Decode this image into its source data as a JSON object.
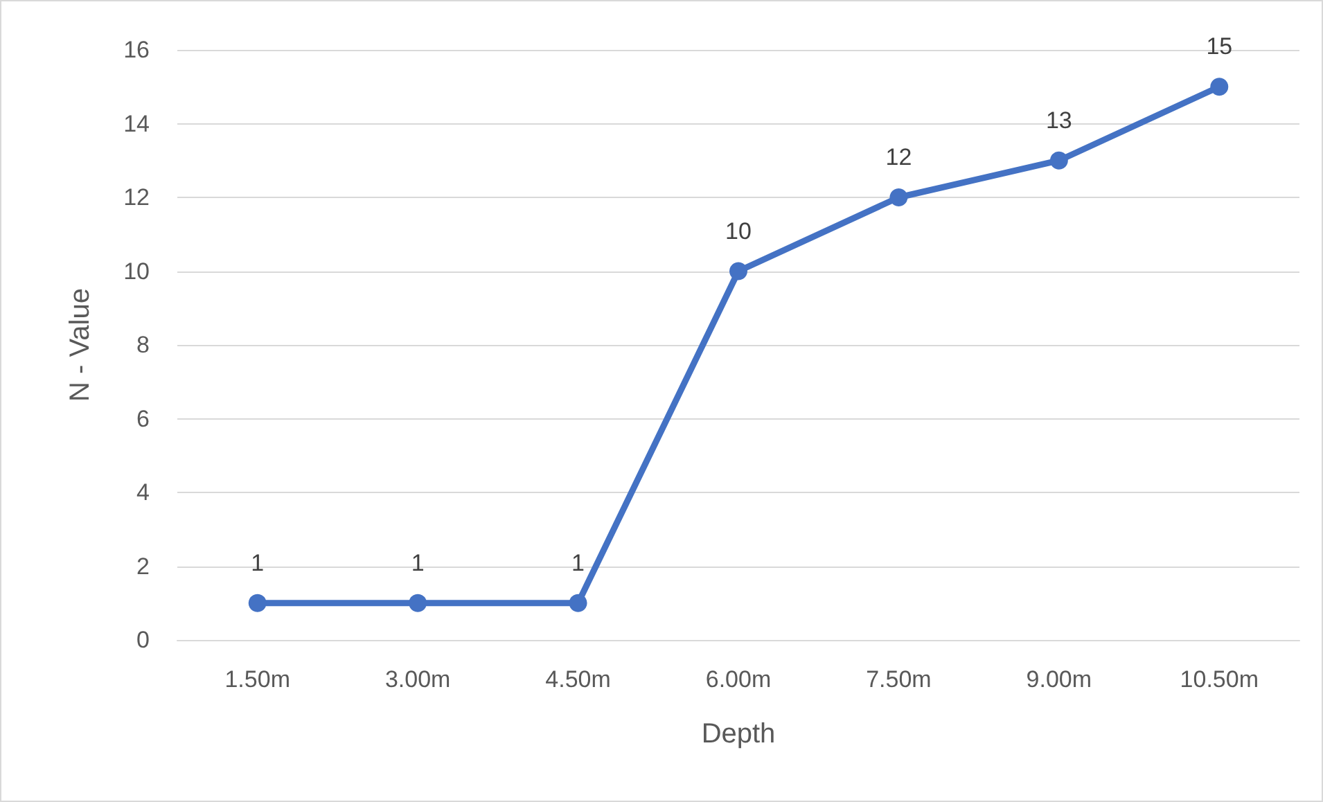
{
  "chart_data": {
    "type": "line",
    "xlabel": "Depth",
    "ylabel": "N - Value",
    "categories": [
      "1.50m",
      "3.00m",
      "4.50m",
      "6.00m",
      "7.50m",
      "9.00m",
      "10.50m"
    ],
    "series": [
      {
        "color": "#4472c4",
        "values": [
          1,
          1,
          1,
          10,
          12,
          13,
          15
        ]
      }
    ],
    "ylim": [
      0,
      16
    ],
    "yticks": [
      0,
      2,
      4,
      6,
      8,
      10,
      12,
      14,
      16
    ],
    "grid": "y",
    "marker": "circle",
    "line_style": "solid",
    "data_labels": true
  }
}
